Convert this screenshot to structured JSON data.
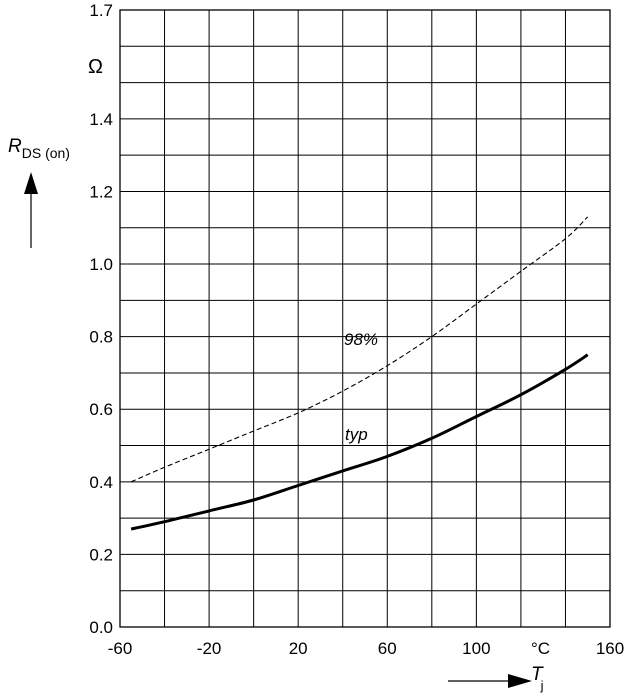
{
  "chart_data": {
    "type": "line",
    "xlim": [
      -60,
      160
    ],
    "ylim": [
      0.0,
      1.7
    ],
    "x_ticks": [
      -60,
      -20,
      20,
      60,
      100,
      160
    ],
    "x_tick_labels": [
      "-60",
      "-20",
      "20",
      "60",
      "100",
      "160"
    ],
    "y_ticks": [
      0.0,
      0.2,
      0.4,
      0.6,
      0.8,
      1.0,
      1.2,
      1.4,
      1.7
    ],
    "y_tick_labels": [
      "0.0",
      "0.2",
      "0.4",
      "0.6",
      "0.8",
      "1.0",
      "1.2",
      "1.4",
      "1.7"
    ],
    "grid": true,
    "grid_x_step": 20,
    "grid_y_step": 0.1,
    "ylabel_main": "R",
    "ylabel_sub": "DS (on)",
    "yunit": "Ω",
    "xlabel_main": "T",
    "xlabel_sub": "j",
    "xunit": "°C",
    "series": [
      {
        "name": "typ",
        "style": "solid",
        "color": "#000000",
        "x": [
          -55,
          -40,
          -20,
          0,
          20,
          40,
          60,
          80,
          100,
          120,
          140,
          150
        ],
        "y": [
          0.27,
          0.29,
          0.32,
          0.35,
          0.39,
          0.43,
          0.47,
          0.52,
          0.58,
          0.64,
          0.71,
          0.75
        ]
      },
      {
        "name": "98%",
        "style": "dashed",
        "color": "#000000",
        "x": [
          -55,
          -40,
          -20,
          0,
          20,
          40,
          60,
          80,
          100,
          120,
          140,
          150
        ],
        "y": [
          0.4,
          0.44,
          0.49,
          0.54,
          0.59,
          0.65,
          0.72,
          0.8,
          0.89,
          0.98,
          1.07,
          1.13
        ]
      }
    ]
  }
}
